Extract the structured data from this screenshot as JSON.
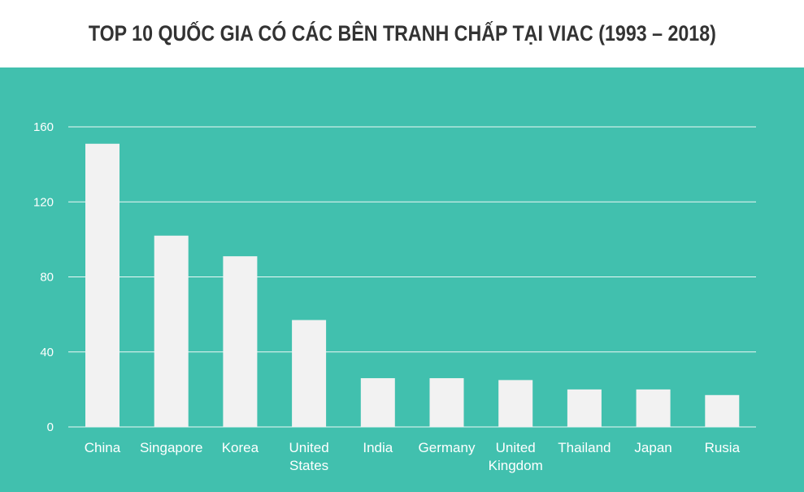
{
  "colors": {
    "background": "#41c0ae",
    "bar": "#f2f2f2",
    "grid": "#ffffff",
    "text": "#ffffff",
    "title": "#333333"
  },
  "chart_data": {
    "type": "bar",
    "title": "TOP 10 QUỐC GIA CÓ CÁC BÊN TRANH CHẤP TẠI VIAC (1993 – 2018)",
    "xlabel": "",
    "ylabel": "",
    "categories": [
      [
        "China"
      ],
      [
        "Singapore"
      ],
      [
        "Korea"
      ],
      [
        "United",
        "States"
      ],
      [
        "India"
      ],
      [
        "Germany"
      ],
      [
        "United",
        "Kingdom"
      ],
      [
        "Thailand"
      ],
      [
        "Japan"
      ],
      [
        "Rusia"
      ]
    ],
    "values": [
      151,
      102,
      91,
      57,
      26,
      26,
      25,
      20,
      20,
      17
    ],
    "ylim": [
      0,
      160
    ],
    "yticks": [
      "0",
      "40",
      "80",
      "120",
      "160"
    ],
    "grid": true,
    "legend": "none"
  }
}
